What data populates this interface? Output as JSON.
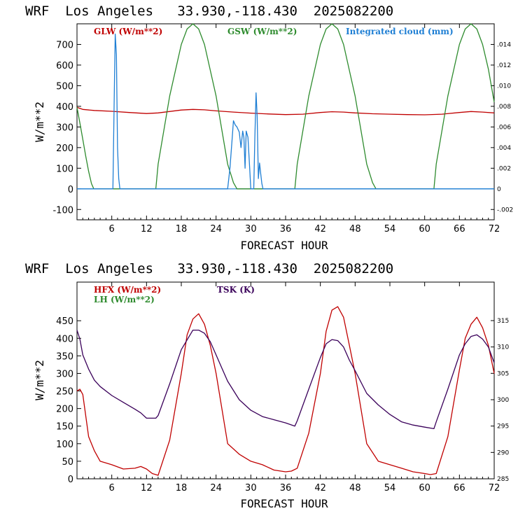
{
  "chart_data": [
    {
      "type": "line",
      "title": "WRF  Los Angeles   33.930,-118.430  2025082200",
      "xlabel": "FORECAST HOUR",
      "ylabel": "W/m**2",
      "xlim": [
        0,
        72
      ],
      "ylim": [
        -150,
        800
      ],
      "x_ticks": [
        6,
        12,
        18,
        24,
        30,
        36,
        42,
        48,
        54,
        60,
        66,
        72
      ],
      "y_ticks": [
        -100,
        0,
        100,
        200,
        300,
        400,
        500,
        600,
        700
      ],
      "y2lim": [
        -0.003,
        0.016
      ],
      "y2_ticks": [
        -0.002,
        0,
        0.002,
        0.004,
        0.006,
        0.008,
        0.01,
        0.012,
        0.014
      ],
      "y2_tick_labels": [
        "-.002",
        "0",
        ".002",
        ".004",
        ".006",
        ".008",
        ".010",
        ".012",
        ".014"
      ],
      "series": [
        {
          "name": "GLW (W/m**2)",
          "color": "#c00000",
          "axis": "left",
          "x": [
            0,
            1,
            3,
            6,
            9,
            12,
            14,
            18,
            20,
            22,
            24,
            27,
            30,
            33,
            36,
            39,
            42,
            44,
            46,
            48,
            51,
            54,
            57,
            60,
            63,
            66,
            68,
            70,
            72
          ],
          "y": [
            395,
            385,
            380,
            376,
            370,
            365,
            368,
            382,
            385,
            383,
            378,
            372,
            367,
            363,
            360,
            362,
            370,
            374,
            372,
            368,
            364,
            362,
            360,
            359,
            362,
            370,
            375,
            372,
            368
          ]
        },
        {
          "name": "GSW (W/m**2)",
          "color": "#2e8b2e",
          "axis": "left",
          "x": [
            0,
            0.5,
            1,
            1.5,
            2,
            2.5,
            2.9,
            3,
            13.6,
            14,
            16,
            18,
            19,
            20,
            21,
            22,
            24,
            26,
            27,
            27.6,
            37.6,
            38,
            40,
            42,
            43,
            44,
            45,
            46,
            48,
            50,
            51,
            51.6,
            61.6,
            62,
            64,
            66,
            67,
            68,
            69,
            70,
            71,
            72
          ],
          "y": [
            395,
            320,
            240,
            160,
            85,
            25,
            0,
            0,
            0,
            120,
            450,
            700,
            775,
            800,
            775,
            700,
            450,
            120,
            30,
            0,
            0,
            120,
            450,
            700,
            775,
            800,
            775,
            700,
            450,
            120,
            30,
            0,
            0,
            120,
            450,
            700,
            775,
            800,
            775,
            700,
            580,
            420
          ]
        },
        {
          "name": "Integrated cloud (mm)",
          "color": "#1f7fd4",
          "axis": "right",
          "x": [
            0,
            6.2,
            6.4,
            6.6,
            6.8,
            7.0,
            7.2,
            7.4,
            26.0,
            26.4,
            26.8,
            27.0,
            27.3,
            27.6,
            28.0,
            28.3,
            28.6,
            28.8,
            29.0,
            29.2,
            29.5,
            29.8,
            30.0,
            30.5,
            30.7,
            30.9,
            31.1,
            31.3,
            31.5,
            31.7,
            31.9,
            32.1,
            72
          ],
          "y": [
            0,
            0,
            0.008,
            0.015,
            0.013,
            0.004,
            0.001,
            0,
            0,
            0.002,
            0.005,
            0.0066,
            0.0062,
            0.006,
            0.0055,
            0.004,
            0.0056,
            0.005,
            0.002,
            0.0056,
            0.005,
            0.002,
            0,
            0,
            0.005,
            0.0093,
            0.007,
            0.001,
            0.0025,
            0.0015,
            0.0005,
            0,
            0
          ]
        }
      ]
    },
    {
      "type": "line",
      "title": "WRF  Los Angeles   33.930,-118.430  2025082200",
      "xlabel": "FORECAST HOUR",
      "ylabel": "W/m**2",
      "xlim": [
        0,
        72
      ],
      "ylim": [
        0,
        560
      ],
      "x_ticks": [
        6,
        12,
        18,
        24,
        30,
        36,
        42,
        48,
        54,
        60,
        66,
        72
      ],
      "y_ticks": [
        0,
        50,
        100,
        150,
        200,
        250,
        300,
        350,
        400,
        450
      ],
      "y2lim": [
        285,
        322.3
      ],
      "y2_ticks": [
        285,
        290,
        295,
        300,
        305,
        310,
        315
      ],
      "y2_tick_labels": [
        "285",
        "290",
        "295",
        "300",
        "305",
        "310",
        "315"
      ],
      "series": [
        {
          "name": "HFX (W/m**2)",
          "color": "#c00000",
          "axis": "left",
          "x": [
            0,
            0.5,
            1,
            2,
            3,
            4,
            5,
            6,
            8,
            10,
            11,
            12,
            13,
            14,
            16,
            18,
            19,
            20,
            21,
            22,
            23,
            24,
            26,
            28,
            30,
            32,
            34,
            36,
            37,
            38,
            40,
            42,
            43,
            44,
            45,
            46,
            47,
            48,
            50,
            52,
            54,
            56,
            58,
            60,
            61,
            62,
            64,
            66,
            67,
            68,
            69,
            70,
            71,
            72
          ],
          "y": [
            250,
            255,
            240,
            120,
            80,
            50,
            45,
            40,
            28,
            30,
            35,
            28,
            15,
            10,
            110,
            300,
            410,
            455,
            470,
            440,
            380,
            300,
            100,
            70,
            50,
            40,
            25,
            20,
            22,
            30,
            130,
            300,
            420,
            480,
            490,
            460,
            380,
            300,
            100,
            50,
            40,
            30,
            20,
            15,
            12,
            15,
            120,
            310,
            400,
            440,
            460,
            430,
            380,
            300
          ]
        },
        {
          "name": "TSK (K)",
          "color": "#3a005a",
          "axis": "right",
          "x": [
            0,
            0.5,
            1,
            2,
            3,
            4,
            6,
            8,
            10,
            11,
            12,
            13,
            13.6,
            14,
            16,
            18,
            20,
            21,
            22,
            23,
            24,
            25,
            26,
            28,
            30,
            32,
            34,
            36,
            37.6,
            38,
            40,
            42,
            43,
            44,
            45,
            46,
            47,
            48,
            50,
            52,
            54,
            56,
            58,
            60,
            61.6,
            62,
            64,
            66,
            67,
            68,
            69,
            70,
            71,
            72
          ],
          "y": [
            313.2,
            311.5,
            308.5,
            305.8,
            303.7,
            302.5,
            300.8,
            299.5,
            298.2,
            297.5,
            296.5,
            296.5,
            296.5,
            297.0,
            303.0,
            309.5,
            313.2,
            313.2,
            312.6,
            311.0,
            308.5,
            306.0,
            303.5,
            300.0,
            298.0,
            296.8,
            296.2,
            295.6,
            295.0,
            296.0,
            302.0,
            308.0,
            310.6,
            311.4,
            311.2,
            310.0,
            307.5,
            305.5,
            301.2,
            299.0,
            297.2,
            295.8,
            295.2,
            294.8,
            294.5,
            295.8,
            302.0,
            308.5,
            310.6,
            312.0,
            312.3,
            311.5,
            310.0,
            307.0
          ]
        }
      ]
    }
  ]
}
